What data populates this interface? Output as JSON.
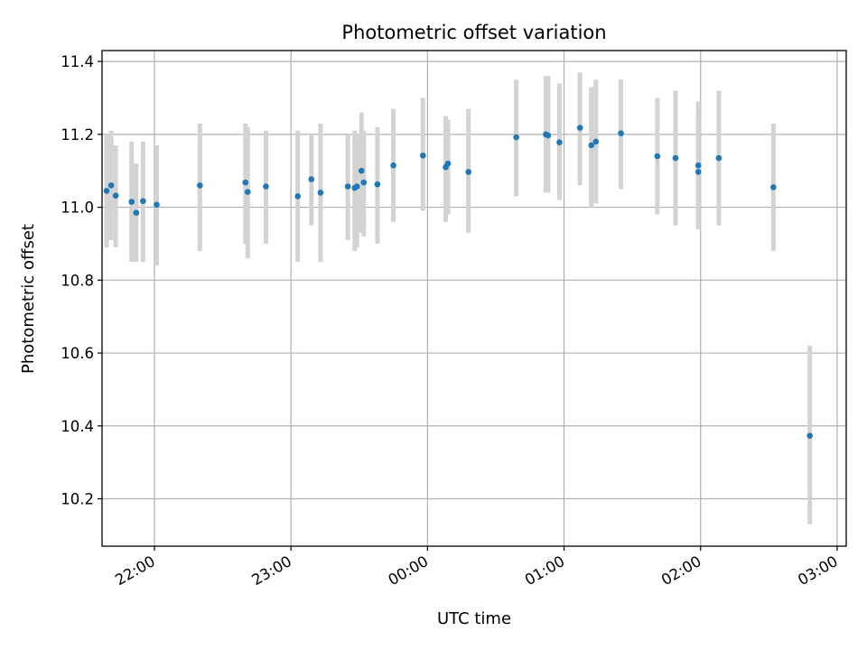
{
  "chart_data": {
    "type": "scatter",
    "title": "Photometric offset variation",
    "xlabel": "UTC time",
    "ylabel": "Photometric offset",
    "x_unit": "UTC time of night",
    "x_tick_labels": [
      "22:00",
      "23:00",
      "00:00",
      "01:00",
      "02:00",
      "03:00"
    ],
    "y_ticks": [
      10.2,
      10.4,
      10.6,
      10.8,
      11.0,
      11.2,
      11.4
    ],
    "y_tick_labels": [
      "10.2",
      "10.4",
      "10.6",
      "10.8",
      "11.0",
      "11.2",
      "11.4"
    ],
    "xlim": [
      "21:37",
      "03:04"
    ],
    "ylim": [
      10.07,
      11.43
    ],
    "grid": true,
    "marker_color": "#1f77b4",
    "errorbar_color": "#d3d3d3",
    "points": [
      {
        "x": "21:39",
        "y": 11.045,
        "lo": 10.89,
        "hi": 11.2
      },
      {
        "x": "21:41",
        "y": 11.06,
        "lo": 10.91,
        "hi": 11.21
      },
      {
        "x": "21:43",
        "y": 11.032,
        "lo": 10.89,
        "hi": 11.17
      },
      {
        "x": "21:50",
        "y": 11.015,
        "lo": 10.85,
        "hi": 11.18
      },
      {
        "x": "21:52",
        "y": 10.985,
        "lo": 10.85,
        "hi": 11.12
      },
      {
        "x": "21:55",
        "y": 11.017,
        "lo": 10.85,
        "hi": 11.18
      },
      {
        "x": "22:01",
        "y": 11.007,
        "lo": 10.84,
        "hi": 11.17
      },
      {
        "x": "22:20",
        "y": 11.06,
        "lo": 10.88,
        "hi": 11.23
      },
      {
        "x": "22:40",
        "y": 11.068,
        "lo": 10.9,
        "hi": 11.23
      },
      {
        "x": "22:41",
        "y": 11.042,
        "lo": 10.86,
        "hi": 11.22
      },
      {
        "x": "22:49",
        "y": 11.057,
        "lo": 10.9,
        "hi": 11.21
      },
      {
        "x": "23:03",
        "y": 11.03,
        "lo": 10.85,
        "hi": 11.21
      },
      {
        "x": "23:09",
        "y": 11.077,
        "lo": 10.95,
        "hi": 11.2
      },
      {
        "x": "23:13",
        "y": 11.04,
        "lo": 10.85,
        "hi": 11.23
      },
      {
        "x": "23:25",
        "y": 11.057,
        "lo": 10.91,
        "hi": 11.2
      },
      {
        "x": "23:28",
        "y": 11.053,
        "lo": 10.88,
        "hi": 11.21
      },
      {
        "x": "23:29",
        "y": 11.057,
        "lo": 10.89,
        "hi": 11.2
      },
      {
        "x": "23:31",
        "y": 11.1,
        "lo": 10.93,
        "hi": 11.26
      },
      {
        "x": "23:32",
        "y": 11.068,
        "lo": 10.92,
        "hi": 11.21
      },
      {
        "x": "23:38",
        "y": 11.063,
        "lo": 10.9,
        "hi": 11.22
      },
      {
        "x": "23:45",
        "y": 11.115,
        "lo": 10.96,
        "hi": 11.27
      },
      {
        "x": "23:58",
        "y": 11.142,
        "lo": 10.99,
        "hi": 11.3
      },
      {
        "x": "00:08",
        "y": 11.11,
        "lo": 10.96,
        "hi": 11.25
      },
      {
        "x": "00:09",
        "y": 11.12,
        "lo": 10.98,
        "hi": 11.24
      },
      {
        "x": "00:18",
        "y": 11.097,
        "lo": 10.93,
        "hi": 11.27
      },
      {
        "x": "00:39",
        "y": 11.192,
        "lo": 11.03,
        "hi": 11.35
      },
      {
        "x": "00:52",
        "y": 11.2,
        "lo": 11.04,
        "hi": 11.36
      },
      {
        "x": "00:53",
        "y": 11.197,
        "lo": 11.04,
        "hi": 11.36
      },
      {
        "x": "00:58",
        "y": 11.178,
        "lo": 11.02,
        "hi": 11.34
      },
      {
        "x": "01:07",
        "y": 11.218,
        "lo": 11.06,
        "hi": 11.37
      },
      {
        "x": "01:12",
        "y": 11.17,
        "lo": 11.0,
        "hi": 11.33
      },
      {
        "x": "01:14",
        "y": 11.18,
        "lo": 11.01,
        "hi": 11.35
      },
      {
        "x": "01:25",
        "y": 11.203,
        "lo": 11.05,
        "hi": 11.35
      },
      {
        "x": "01:41",
        "y": 11.14,
        "lo": 10.98,
        "hi": 11.3
      },
      {
        "x": "01:49",
        "y": 11.135,
        "lo": 10.95,
        "hi": 11.32
      },
      {
        "x": "01:59",
        "y": 11.097,
        "lo": 10.94,
        "hi": 11.25
      },
      {
        "x": "01:59",
        "y": 11.115,
        "lo": 10.94,
        "hi": 11.29
      },
      {
        "x": "02:08",
        "y": 11.135,
        "lo": 10.95,
        "hi": 11.32
      },
      {
        "x": "02:32",
        "y": 11.055,
        "lo": 10.88,
        "hi": 11.23
      },
      {
        "x": "02:48",
        "y": 10.373,
        "lo": 10.13,
        "hi": 10.62
      }
    ]
  }
}
